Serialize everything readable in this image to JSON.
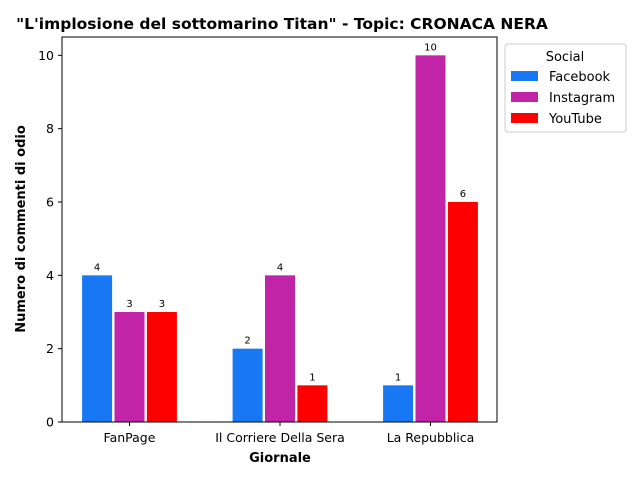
{
  "chart_data": {
    "type": "bar",
    "title": "\"L'implosione del sottomarino Titan\" - Topic: CRONACA NERA",
    "xlabel": "Giornale",
    "ylabel": "Numero di commenti di odio",
    "categories": [
      "FanPage",
      "Il Corriere Della Sera",
      "La Repubblica"
    ],
    "series": [
      {
        "name": "Facebook",
        "values": [
          4,
          2,
          1
        ],
        "color": "#1877F2"
      },
      {
        "name": "Instagram",
        "values": [
          3,
          4,
          10
        ],
        "color": "#C224A8"
      },
      {
        "name": "YouTube",
        "values": [
          3,
          1,
          6
        ],
        "color": "#FF0000"
      }
    ],
    "ylim": [
      0,
      10.5
    ],
    "yticks": [
      0,
      2,
      4,
      6,
      8,
      10
    ],
    "legend": {
      "title": "Social",
      "placement": "outside-upper-right"
    },
    "grid": false,
    "data_labels": true
  }
}
